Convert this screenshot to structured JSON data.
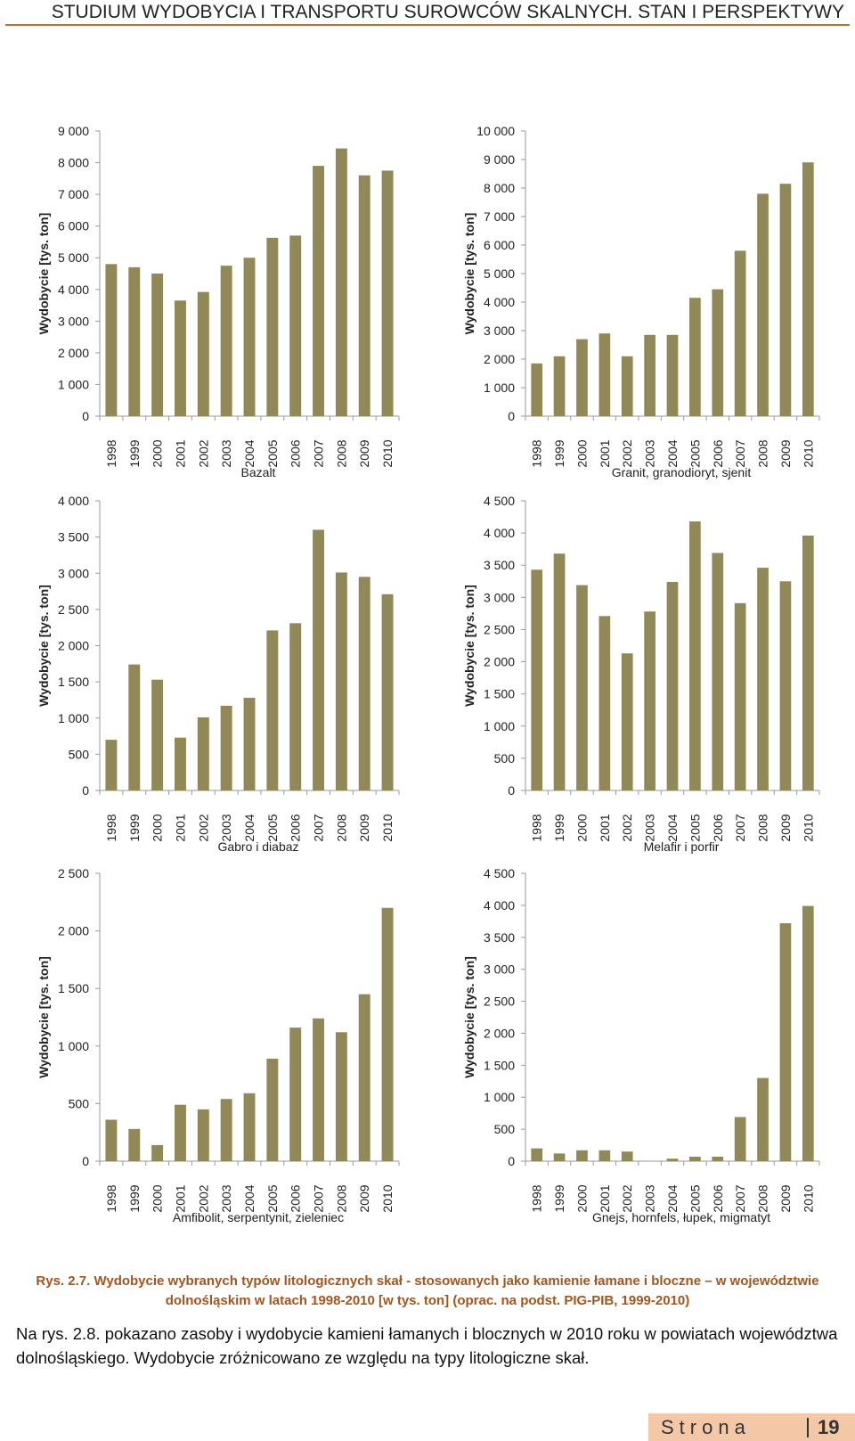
{
  "header": {
    "title": "STUDIUM WYDOBYCIA I TRANSPORTU SUROWCÓW SKALNYCH. STAN I PERSPEKTYWY"
  },
  "chart_data": [
    {
      "type": "bar",
      "title": "Bazalt",
      "ylabel": "Wydobycie [tys. ton]",
      "categories": [
        "1998",
        "1999",
        "2000",
        "2001",
        "2002",
        "2003",
        "2004",
        "2005",
        "2006",
        "2007",
        "2008",
        "2009",
        "2010"
      ],
      "values": [
        4800,
        4700,
        4500,
        3650,
        3920,
        4750,
        5000,
        5630,
        5700,
        7900,
        8450,
        7600,
        7750
      ],
      "ylim": [
        0,
        9000
      ],
      "yticks": [
        0,
        1000,
        2000,
        3000,
        4000,
        5000,
        6000,
        7000,
        8000,
        9000
      ],
      "ytick_labels": [
        "0",
        "1 000",
        "2 000",
        "3 000",
        "4 000",
        "5 000",
        "6 000",
        "7 000",
        "8 000",
        "9 000"
      ],
      "color": "#918858"
    },
    {
      "type": "bar",
      "title": "Granit, granodioryt, sjenit",
      "ylabel": "Wydobycie [tys. ton]",
      "categories": [
        "1998",
        "1999",
        "2000",
        "2001",
        "2002",
        "2003",
        "2004",
        "2005",
        "2006",
        "2007",
        "2008",
        "2009",
        "2010"
      ],
      "values": [
        1850,
        2100,
        2700,
        2900,
        2100,
        2850,
        2850,
        4150,
        4450,
        5800,
        7800,
        8150,
        8900
      ],
      "ylim": [
        0,
        10000
      ],
      "yticks": [
        0,
        1000,
        2000,
        3000,
        4000,
        5000,
        6000,
        7000,
        8000,
        9000,
        10000
      ],
      "ytick_labels": [
        "0",
        "1 000",
        "2 000",
        "3 000",
        "4 000",
        "5 000",
        "6 000",
        "7 000",
        "8 000",
        "9 000",
        "10 000"
      ],
      "color": "#918858"
    },
    {
      "type": "bar",
      "title": "Gabro i diabaz",
      "ylabel": "Wydobycie [tys. ton]",
      "categories": [
        "1998",
        "1999",
        "2000",
        "2001",
        "2002",
        "2003",
        "2004",
        "2005",
        "2006",
        "2007",
        "2008",
        "2009",
        "2010"
      ],
      "values": [
        700,
        1740,
        1530,
        730,
        1010,
        1170,
        1280,
        2210,
        2310,
        3600,
        3010,
        2950,
        2710
      ],
      "ylim": [
        0,
        4000
      ],
      "yticks": [
        0,
        500,
        1000,
        1500,
        2000,
        2500,
        3000,
        3500,
        4000
      ],
      "ytick_labels": [
        "0",
        "500",
        "1 000",
        "1 500",
        "2 000",
        "2 500",
        "3 000",
        "3 500",
        "4 000"
      ],
      "color": "#918858"
    },
    {
      "type": "bar",
      "title": "Melafir i porfir",
      "ylabel": "Wydobycie [tys. ton]",
      "categories": [
        "1998",
        "1999",
        "2000",
        "2001",
        "2002",
        "2003",
        "2004",
        "2005",
        "2006",
        "2007",
        "2008",
        "2009",
        "2010"
      ],
      "values": [
        3430,
        3680,
        3190,
        2710,
        2130,
        2780,
        3240,
        4180,
        3690,
        2910,
        3460,
        3250,
        3960
      ],
      "ylim": [
        0,
        4500
      ],
      "yticks": [
        0,
        500,
        1000,
        1500,
        2000,
        2500,
        3000,
        3500,
        4000,
        4500
      ],
      "ytick_labels": [
        "0",
        "500",
        "1 000",
        "1 500",
        "2 000",
        "2 500",
        "3 000",
        "3 500",
        "4 000",
        "4 500"
      ],
      "color": "#918858"
    },
    {
      "type": "bar",
      "title": "Amfibolit, serpentynit, zieleniec",
      "ylabel": "Wydobycie [tys. ton]",
      "categories": [
        "1998",
        "1999",
        "2000",
        "2001",
        "2002",
        "2003",
        "2004",
        "2005",
        "2006",
        "2007",
        "2008",
        "2009",
        "2010"
      ],
      "values": [
        360,
        280,
        140,
        490,
        450,
        540,
        590,
        890,
        1160,
        1240,
        1120,
        1450,
        2200
      ],
      "ylim": [
        0,
        2500
      ],
      "yticks": [
        0,
        500,
        1000,
        1500,
        2000,
        2500
      ],
      "ytick_labels": [
        "0",
        "500",
        "1 000",
        "1 500",
        "2 000",
        "2 500"
      ],
      "color": "#918858"
    },
    {
      "type": "bar",
      "title": "Gnejs, hornfels, łupek, migmatyt",
      "ylabel": "Wydobycie [tys. ton]",
      "categories": [
        "1998",
        "1999",
        "2000",
        "2001",
        "2002",
        "2003",
        "2004",
        "2005",
        "2006",
        "2007",
        "2008",
        "2009",
        "2010"
      ],
      "values": [
        200,
        120,
        170,
        170,
        150,
        0,
        40,
        70,
        70,
        690,
        1300,
        3720,
        3990
      ],
      "ylim": [
        0,
        4500
      ],
      "yticks": [
        0,
        500,
        1000,
        1500,
        2000,
        2500,
        3000,
        3500,
        4000,
        4500
      ],
      "ytick_labels": [
        "0",
        "500",
        "1 000",
        "1 500",
        "2 000",
        "2 500",
        "3 000",
        "3 500",
        "4 000",
        "4 500"
      ],
      "color": "#918858"
    }
  ],
  "caption": {
    "line1": "Rys. 2.7. Wydobycie wybranych typów litologicznych skał - stosowanych jako kamienie łamane i bloczne – w województwie",
    "line2": "dolnośląskim w latach 1998-2010 [w tys. ton] (oprac. na podst. PIG-PIB, 1999-2010)"
  },
  "body_text": "Na rys. 2.8. pokazano zasoby i wydobycie kamieni łamanych i blocznych w 2010 roku w powiatach województwa dolnośląskiego. Wydobycie zróżnicowano ze względu na typy litologiczne skał.",
  "footer": {
    "label": "Strona",
    "page_number": "19"
  }
}
